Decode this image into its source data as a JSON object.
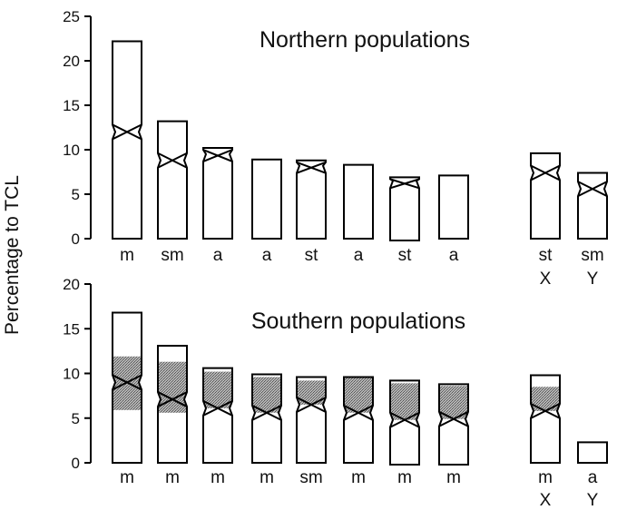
{
  "figure": {
    "ylabel": "Percentage to TCL"
  },
  "chart_data": [
    {
      "type": "bar",
      "title": "Northern populations",
      "ylim": [
        0,
        25
      ],
      "yticks": [
        0,
        5,
        10,
        15,
        20,
        25
      ],
      "categories": [
        "m",
        "sm",
        "a",
        "a",
        "st",
        "a",
        "st",
        "a",
        "st",
        "sm"
      ],
      "sex_labels": [
        "",
        "",
        "",
        "",
        "",
        "",
        "",
        "",
        "X",
        "Y"
      ],
      "values": [
        22.2,
        13.2,
        10.2,
        8.9,
        8.8,
        8.3,
        6.9,
        7.1,
        9.6,
        7.4
      ],
      "bottoms": [
        0.0,
        0.0,
        0.0,
        0.0,
        0.0,
        0.0,
        -0.2,
        0.0,
        0.0,
        0.0
      ],
      "centromere": [
        12.0,
        8.8,
        9.5,
        null,
        8.2,
        null,
        6.5,
        null,
        7.4,
        5.6
      ],
      "heterochromatin": [
        null,
        null,
        null,
        null,
        null,
        null,
        null,
        null,
        null,
        null
      ]
    },
    {
      "type": "bar",
      "title": "Southern populations",
      "ylim": [
        0,
        20
      ],
      "yticks": [
        0,
        5,
        10,
        15,
        20
      ],
      "categories": [
        "m",
        "m",
        "m",
        "m",
        "sm",
        "m",
        "m",
        "m",
        "m",
        "a"
      ],
      "sex_labels": [
        "",
        "",
        "",
        "",
        "",
        "",
        "",
        "",
        "X",
        "Y"
      ],
      "values": [
        16.8,
        13.1,
        10.6,
        9.9,
        9.6,
        9.6,
        9.2,
        8.8,
        9.8,
        2.3
      ],
      "bottoms": [
        0.0,
        0.0,
        0.0,
        0.0,
        0.0,
        0.0,
        -0.2,
        -0.2,
        0.0,
        0.0
      ],
      "centromere": [
        9.0,
        7.1,
        6.1,
        5.6,
        6.5,
        5.6,
        4.8,
        4.9,
        5.8,
        null
      ],
      "heterochromatin": [
        [
          5.9,
          11.9
        ],
        [
          5.6,
          11.3
        ],
        [
          6.1,
          10.2
        ],
        [
          5.6,
          9.6
        ],
        [
          6.5,
          9.2
        ],
        [
          5.6,
          9.5
        ],
        [
          4.8,
          8.9
        ],
        [
          4.9,
          8.6
        ],
        [
          5.8,
          8.5
        ],
        null
      ]
    }
  ]
}
